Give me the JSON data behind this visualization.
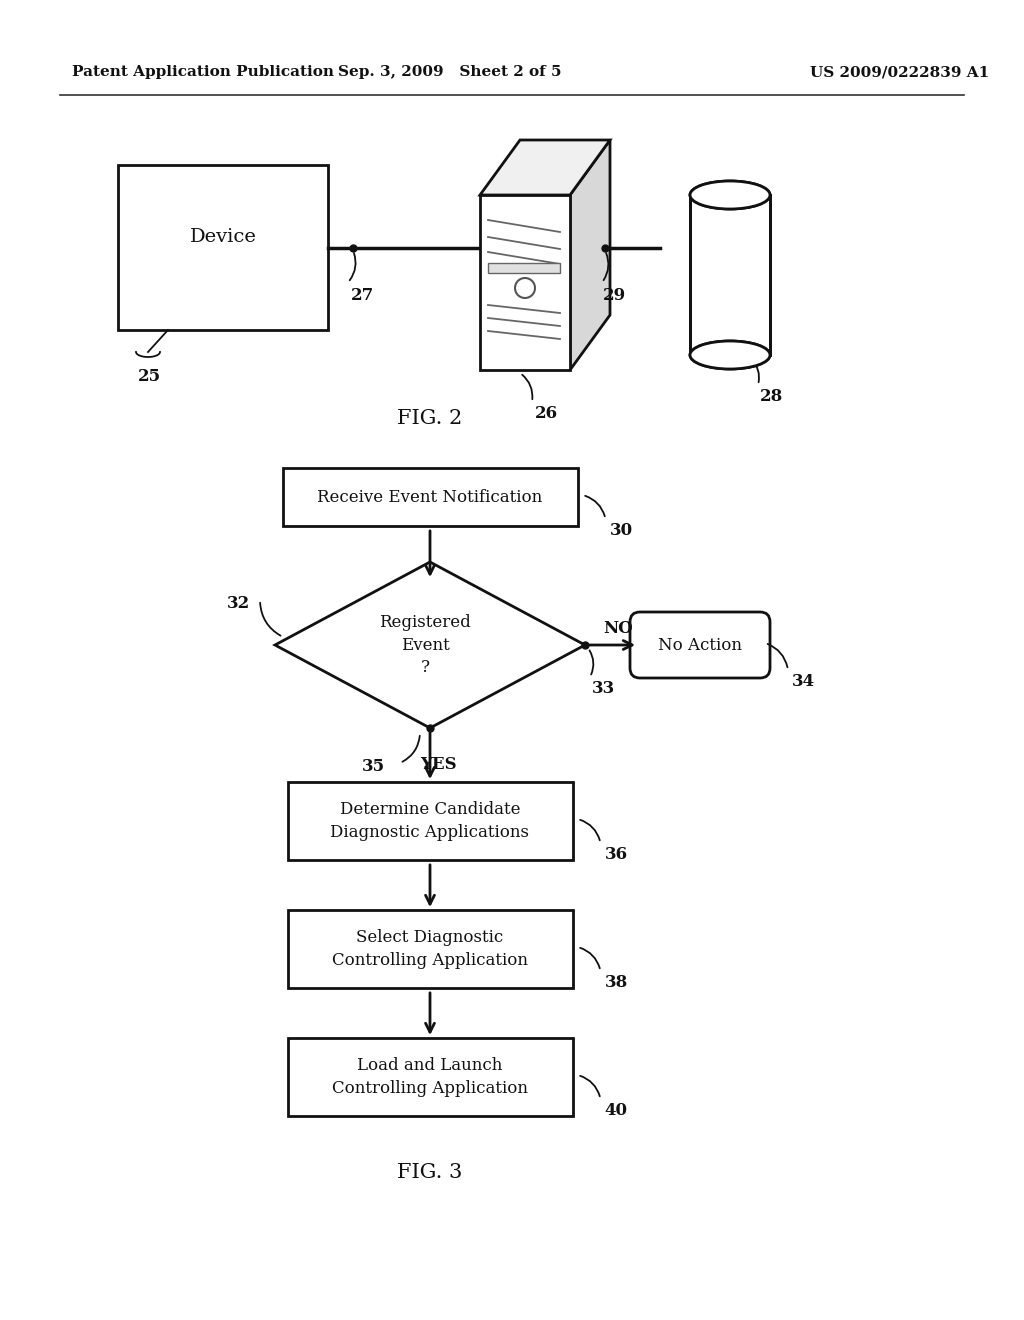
{
  "bg_color": "#ffffff",
  "header_left": "Patent Application Publication",
  "header_center": "Sep. 3, 2009   Sheet 2 of 5",
  "header_right": "US 2009/0222839 A1",
  "fig2_label": "FIG. 2",
  "fig3_label": "FIG. 3",
  "device_label": "Device",
  "device_ref": "25",
  "server_ref": "26",
  "conn27_ref": "27",
  "conn29_ref": "29",
  "db_ref": "28",
  "flowchart": {
    "box1_text": "Receive Event Notification",
    "box1_ref": "30",
    "diamond_text": "Registered\nEvent\n?",
    "diamond_ref": "32",
    "no_label": "NO",
    "no_ref": "33",
    "no_action_text": "No Action",
    "no_action_ref": "34",
    "yes_label": "YES",
    "yes_ref": "35",
    "box2_text": "Determine Candidate\nDiagnostic Applications",
    "box2_ref": "36",
    "box3_text": "Select Diagnostic\nControlling Application",
    "box3_ref": "38",
    "box4_text": "Load and Launch\nControlling Application",
    "box4_ref": "40"
  }
}
